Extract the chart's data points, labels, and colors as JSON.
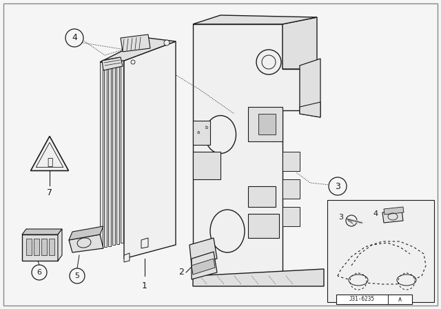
{
  "bg_color": "#f5f5f5",
  "line_color": "#1a1a1a",
  "fill_light": "#f0f0f0",
  "fill_mid": "#e0e0e0",
  "fill_dark": "#c8c8c8",
  "fig_width": 6.4,
  "fig_height": 4.48,
  "dpi": 100,
  "ref_code": "J31-6235"
}
